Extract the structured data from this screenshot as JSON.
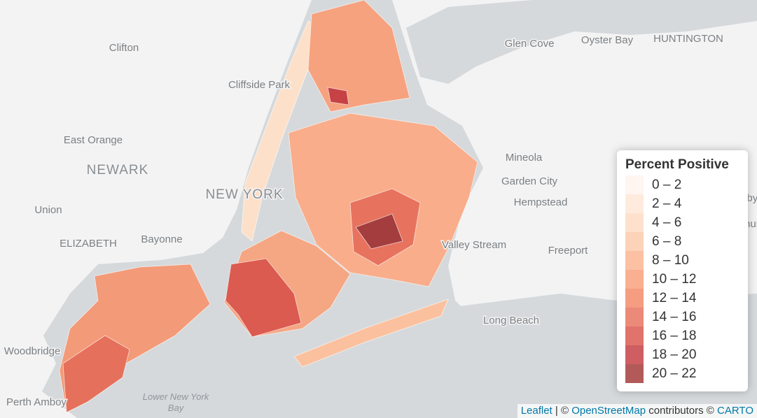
{
  "place_labels": [
    "Clifton",
    "Glen Cove",
    "Oyster Bay",
    "HUNTINGTON",
    "Cliffside Park",
    "East Orange",
    "NEWARK",
    "Mineola",
    "Garden City",
    "West Babylon",
    "Union",
    "Hempstead",
    "Lindenhurst",
    "NEW YORK",
    "ELIZABETH",
    "Bayonne",
    "Valley Stream",
    "Freeport",
    "Long Beach",
    "Woodbridge",
    "Perth Amboy"
  ],
  "water_labels": [
    [
      "Lower New York",
      "Bay"
    ]
  ],
  "legend": {
    "title": "Percent Positive",
    "items": [
      {
        "label": "0 – 2",
        "color": "#fff3ee"
      },
      {
        "label": "2 – 4",
        "color": "#fee8d8"
      },
      {
        "label": "4 – 6",
        "color": "#fddcc4"
      },
      {
        "label": "6 – 8",
        "color": "#fccbab"
      },
      {
        "label": "8 – 10",
        "color": "#fbb692"
      },
      {
        "label": "10 – 12",
        "color": "#f9a17c"
      },
      {
        "label": "12 – 14",
        "color": "#f38b6b"
      },
      {
        "label": "14 – 16",
        "color": "#e87560"
      },
      {
        "label": "16 – 18",
        "color": "#db5b51"
      },
      {
        "label": "18 – 20",
        "color": "#c64245"
      },
      {
        "label": "20 – 22",
        "color": "#a43d3d"
      }
    ]
  },
  "attribution": [
    "Leaflet",
    " | © ",
    "OpenStreetMap",
    " contributors © ",
    "CARTO"
  ]
}
